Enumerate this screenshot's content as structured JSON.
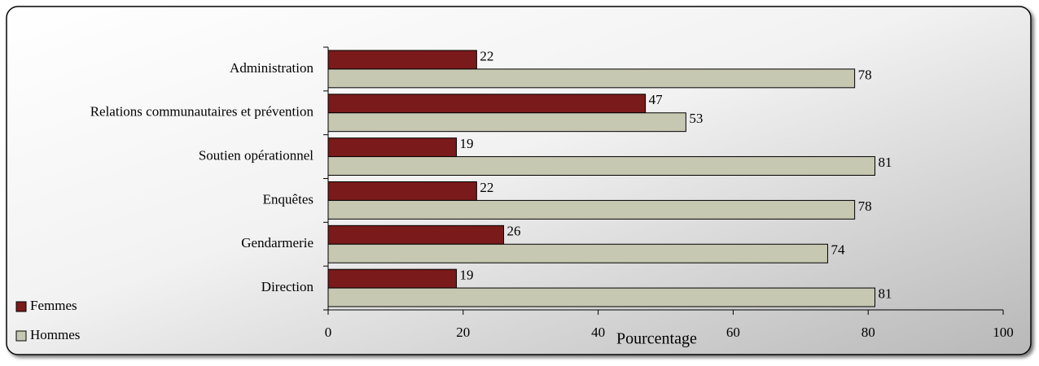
{
  "chart_data": {
    "type": "bar",
    "orientation": "horizontal",
    "categories": [
      "Administration",
      "Relations communautaires et prévention",
      "Soutien opérationnel",
      "Enquêtes",
      "Gendarmerie",
      "Direction"
    ],
    "series": [
      {
        "name": "Femmes",
        "color": "#7b1a1a",
        "values": [
          22,
          47,
          19,
          22,
          26,
          19
        ]
      },
      {
        "name": "Hommes",
        "color": "#c6c8b2",
        "values": [
          78,
          53,
          81,
          78,
          74,
          81
        ]
      }
    ],
    "xlabel": "Pourcentage",
    "xlim": [
      0,
      100
    ],
    "xticks": [
      0,
      20,
      40,
      60,
      80,
      100
    ],
    "grid": false,
    "legend": "bottom-left"
  }
}
